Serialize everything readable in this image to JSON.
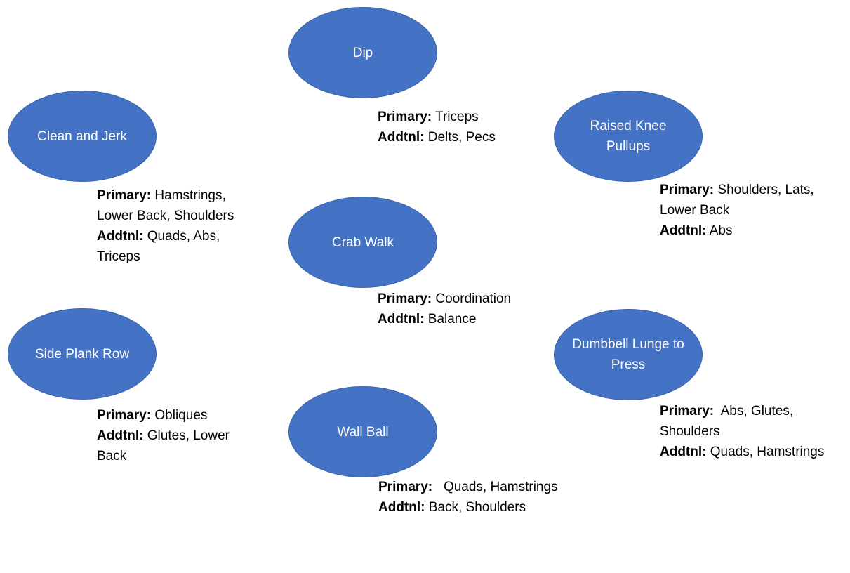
{
  "exercises": [
    {
      "id": "dip",
      "name": "Dip",
      "primary_label": "Primary:",
      "primary": "Triceps",
      "addtnl_label": "Addtnl:",
      "addtnl": "Delts, Pecs"
    },
    {
      "id": "clean-and-jerk",
      "name": "Clean and Jerk",
      "primary_label": "Primary:",
      "primary": "Hamstrings, Lower Back, Shoulders",
      "addtnl_label": "Addtnl:",
      "addtnl": "Quads, Abs, Triceps"
    },
    {
      "id": "raised-knee-pullups",
      "name": "Raised Knee Pullups",
      "primary_label": "Primary:",
      "primary": "Shoulders, Lats, Lower Back",
      "addtnl_label": "Addtnl:",
      "addtnl": "Abs"
    },
    {
      "id": "crab-walk",
      "name": "Crab Walk",
      "primary_label": "Primary:",
      "primary": "Coordination",
      "addtnl_label": "Addtnl:",
      "addtnl": "Balance"
    },
    {
      "id": "side-plank-row",
      "name": "Side Plank Row",
      "primary_label": "Primary:",
      "primary": "Obliques",
      "addtnl_label": "Addtnl:",
      "addtnl": "Glutes, Lower Back"
    },
    {
      "id": "dumbbell-lunge-to-press",
      "name": "Dumbbell Lunge to Press",
      "primary_label": "Primary:",
      "primary": "Abs, Glutes, Shoulders",
      "addtnl_label": "Addtnl:",
      "addtnl": "Quads, Hamstrings"
    },
    {
      "id": "wall-ball",
      "name": "Wall Ball",
      "primary_label": "Primary:",
      "primary": "Quads, Hamstrings",
      "addtnl_label": "Addtnl:",
      "addtnl": "Back, Shoulders"
    }
  ],
  "colors": {
    "node_fill": "#4472c4",
    "node_text": "#ffffff",
    "note_text": "#000000"
  }
}
